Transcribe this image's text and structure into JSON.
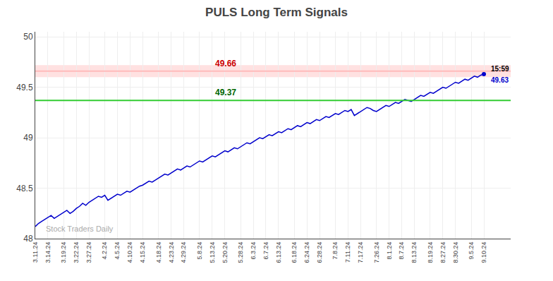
{
  "chart_data": {
    "type": "line",
    "title": "PULS Long Term Signals",
    "categories": [
      "3.11.24",
      null,
      null,
      null,
      "3.14.24",
      null,
      null,
      null,
      null,
      "3.19.24",
      null,
      null,
      null,
      "3.22.24",
      null,
      null,
      null,
      "3.27.24",
      null,
      null,
      null,
      null,
      "4.2.24",
      null,
      null,
      null,
      "4.5.24",
      null,
      null,
      null,
      "4.10.24",
      null,
      null,
      null,
      "4.15.24",
      null,
      null,
      null,
      null,
      "4.18.24",
      null,
      null,
      null,
      "4.23.24",
      null,
      null,
      null,
      "4.29.24",
      null,
      null,
      null,
      null,
      "5.8.24",
      null,
      null,
      null,
      "5.13.24",
      null,
      null,
      null,
      "5.20.24",
      null,
      null,
      null,
      null,
      "5.28.24",
      null,
      null,
      null,
      "6.3.24",
      null,
      null,
      null,
      "6.7.24",
      null,
      null,
      null,
      "6.13.24",
      null,
      null,
      null,
      null,
      "6.18.24",
      null,
      null,
      null,
      "6.24.24",
      null,
      null,
      null,
      "6.28.24",
      null,
      null,
      null,
      null,
      "7.8.24",
      null,
      null,
      null,
      "7.11.24",
      null,
      null,
      null,
      "7.17.24",
      null,
      null,
      null,
      null,
      "7.26.24",
      null,
      null,
      null,
      "8.1.24",
      null,
      null,
      null,
      "8.7.24",
      null,
      null,
      null,
      "8.13.24",
      null,
      null,
      null,
      null,
      "8.19.24",
      null,
      null,
      null,
      "8.27.24",
      null,
      null,
      null,
      "8.30.24",
      null,
      null,
      null,
      null,
      "9.5.24",
      null,
      null,
      null,
      "9.10.24"
    ],
    "values": [
      48.12,
      48.15,
      48.17,
      48.19,
      48.21,
      48.23,
      48.2,
      48.22,
      48.24,
      48.26,
      48.28,
      48.25,
      48.27,
      48.3,
      48.32,
      48.35,
      48.33,
      48.36,
      48.38,
      48.4,
      48.42,
      48.41,
      48.43,
      48.38,
      48.4,
      48.42,
      48.44,
      48.43,
      48.45,
      48.47,
      48.46,
      48.48,
      48.5,
      48.52,
      48.53,
      48.55,
      48.57,
      48.56,
      48.58,
      48.6,
      48.62,
      48.64,
      48.63,
      48.65,
      48.67,
      48.69,
      48.68,
      48.7,
      48.72,
      48.71,
      48.73,
      48.75,
      48.77,
      48.76,
      48.78,
      48.8,
      48.82,
      48.81,
      48.83,
      48.85,
      48.87,
      48.86,
      48.88,
      48.9,
      48.89,
      48.91,
      48.93,
      48.95,
      48.94,
      48.96,
      48.98,
      49.0,
      48.99,
      49.01,
      49.03,
      49.02,
      49.04,
      49.06,
      49.05,
      49.07,
      49.09,
      49.08,
      49.1,
      49.12,
      49.11,
      49.13,
      49.15,
      49.14,
      49.16,
      49.18,
      49.17,
      49.19,
      49.21,
      49.2,
      49.22,
      49.24,
      49.23,
      49.25,
      49.27,
      49.26,
      49.28,
      49.22,
      49.24,
      49.26,
      49.28,
      49.3,
      49.29,
      49.27,
      49.26,
      49.28,
      49.3,
      49.32,
      49.31,
      49.33,
      49.35,
      49.34,
      49.36,
      49.38,
      49.37,
      49.36,
      49.38,
      49.4,
      49.42,
      49.41,
      49.43,
      49.45,
      49.44,
      49.46,
      49.48,
      49.5,
      49.49,
      49.51,
      49.53,
      49.55,
      49.54,
      49.56,
      49.58,
      49.57,
      49.59,
      49.61,
      49.6,
      49.62,
      49.63
    ],
    "color": "#0000cc",
    "ylim": [
      48.0,
      50.05
    ],
    "yticks": [
      48,
      48.5,
      49,
      49.5,
      50
    ],
    "grid": true,
    "reference_lines": [
      {
        "value": 49.66,
        "label": "49.66",
        "color": "#ffbbbb",
        "label_color": "#cc0000"
      },
      {
        "value": 49.37,
        "label": "49.37",
        "color": "#33cc33",
        "label_color": "#006600"
      }
    ],
    "bands": [
      {
        "from": 49.6,
        "to": 49.72,
        "color": "#ff8888"
      }
    ],
    "annotations": [
      {
        "text": "15:59",
        "color": "#000000"
      },
      {
        "text": "49.63",
        "color": "#0000cc"
      }
    ],
    "watermark": {
      "text": "Stock Traders Daily",
      "color": "#aaaaaa"
    }
  }
}
